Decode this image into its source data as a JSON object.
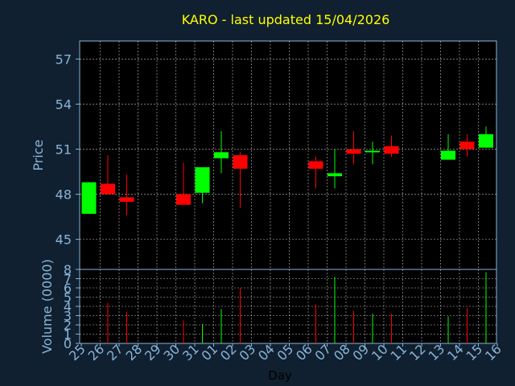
{
  "chart_data": {
    "type": "candlestick",
    "title": "KARO - last updated 15/04/2026",
    "price_label": "Price",
    "volume_label": "Volume (0000)",
    "xlabel": "Day",
    "price_ylim": [
      43,
      58.2
    ],
    "price_ticks": [
      45,
      48,
      51,
      54,
      57
    ],
    "volume_ylim": [
      0,
      8
    ],
    "volume_ticks": [
      0,
      1,
      2,
      3,
      4,
      5,
      6,
      7,
      8
    ],
    "grid": true,
    "colors": {
      "up": "#00ff00",
      "down": "#ff0000",
      "grid": "#ffffff",
      "frame": "#8ab4d6",
      "title": "#ffff00",
      "axis_text": "#8ab4d6",
      "background": "#102030",
      "panel": "#000000"
    },
    "days": [
      "25",
      "26",
      "27",
      "28",
      "29",
      "30",
      "31",
      "01",
      "02",
      "03",
      "04",
      "05",
      "06",
      "07",
      "08",
      "09",
      "10",
      "11",
      "12",
      "13",
      "14",
      "15",
      "16"
    ],
    "candles": [
      {
        "day": "25",
        "open": 46.7,
        "high": 48.8,
        "low": 46.7,
        "close": 48.8,
        "volume": 0
      },
      {
        "day": "26",
        "open": 48.7,
        "high": 50.6,
        "low": 48.0,
        "close": 48.0,
        "volume": 4.4
      },
      {
        "day": "27",
        "open": 47.8,
        "high": 49.3,
        "low": 46.6,
        "close": 47.5,
        "volume": 3.4
      },
      {
        "day": "30",
        "open": 48.0,
        "high": 50.1,
        "low": 47.3,
        "close": 47.3,
        "volume": 2.5
      },
      {
        "day": "31",
        "open": 48.1,
        "high": 49.8,
        "low": 47.4,
        "close": 49.8,
        "volume": 2.1
      },
      {
        "day": "01",
        "open": 50.4,
        "high": 52.2,
        "low": 49.4,
        "close": 50.8,
        "volume": 3.7
      },
      {
        "day": "02",
        "open": 50.6,
        "high": 50.8,
        "low": 47.1,
        "close": 49.7,
        "volume": 6.0
      },
      {
        "day": "06",
        "open": 50.2,
        "high": 50.5,
        "low": 48.4,
        "close": 49.7,
        "volume": 4.2
      },
      {
        "day": "07",
        "open": 49.2,
        "high": 51.0,
        "low": 48.4,
        "close": 49.4,
        "volume": 7.2
      },
      {
        "day": "08",
        "open": 51.0,
        "high": 52.2,
        "low": 50.0,
        "close": 50.7,
        "volume": 3.5
      },
      {
        "day": "09",
        "open": 50.8,
        "high": 51.5,
        "low": 50.0,
        "close": 50.9,
        "volume": 3.2
      },
      {
        "day": "10",
        "open": 51.2,
        "high": 51.9,
        "low": 50.5,
        "close": 50.7,
        "volume": 3.2
      },
      {
        "day": "13",
        "open": 50.3,
        "high": 52.0,
        "low": 50.3,
        "close": 50.9,
        "volume": 2.9
      },
      {
        "day": "14",
        "open": 51.5,
        "high": 52.0,
        "low": 50.5,
        "close": 51.0,
        "volume": 3.8
      },
      {
        "day": "15",
        "open": 51.1,
        "high": 52.5,
        "low": 51.1,
        "close": 52.0,
        "volume": 7.7
      }
    ]
  }
}
